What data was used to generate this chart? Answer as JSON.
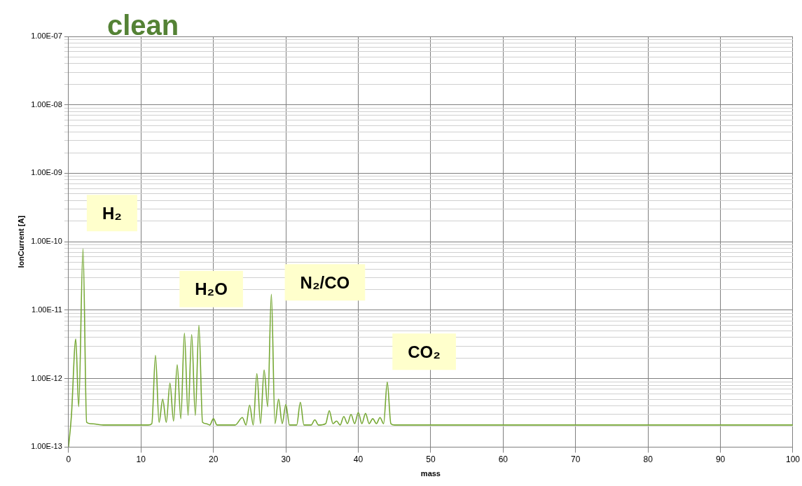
{
  "chart_data": {
    "type": "line",
    "title": "clean",
    "xlabel": "mass",
    "ylabel": "IonCurrent [A]",
    "log": "y",
    "grid": true,
    "legend": false,
    "marker": "none",
    "line_style": "solid",
    "xlim": [
      0,
      100
    ],
    "xticks": [
      0,
      10,
      20,
      30,
      40,
      50,
      60,
      70,
      80,
      90,
      100
    ],
    "ylim": [
      1e-13,
      1e-07
    ],
    "yticks": [
      {
        "value": 1e-13,
        "label": "1.00E-13"
      },
      {
        "value": 2e-13,
        "label": null
      },
      {
        "value": 3e-13,
        "label": null
      },
      {
        "value": 4e-13,
        "label": null
      },
      {
        "value": 5e-13,
        "label": null
      },
      {
        "value": 6e-13,
        "label": null
      },
      {
        "value": 7e-13,
        "label": null
      },
      {
        "value": 8e-13,
        "label": null
      },
      {
        "value": 9e-13,
        "label": null
      },
      {
        "value": 1e-12,
        "label": "1.00E-12"
      },
      {
        "value": 2e-12,
        "label": null
      },
      {
        "value": 3e-12,
        "label": null
      },
      {
        "value": 4e-12,
        "label": null
      },
      {
        "value": 5e-12,
        "label": null
      },
      {
        "value": 6e-12,
        "label": null
      },
      {
        "value": 7e-12,
        "label": null
      },
      {
        "value": 8e-12,
        "label": null
      },
      {
        "value": 9e-12,
        "label": null
      },
      {
        "value": 1e-11,
        "label": "1.00E-11"
      },
      {
        "value": 2e-11,
        "label": null
      },
      {
        "value": 3e-11,
        "label": null
      },
      {
        "value": 4e-11,
        "label": null
      },
      {
        "value": 5e-11,
        "label": null
      },
      {
        "value": 6e-11,
        "label": null
      },
      {
        "value": 7e-11,
        "label": null
      },
      {
        "value": 8e-11,
        "label": null
      },
      {
        "value": 9e-11,
        "label": null
      },
      {
        "value": 1e-10,
        "label": "1.00E-10"
      },
      {
        "value": 2e-10,
        "label": null
      },
      {
        "value": 3e-10,
        "label": null
      },
      {
        "value": 4e-10,
        "label": null
      },
      {
        "value": 5e-10,
        "label": null
      },
      {
        "value": 6e-10,
        "label": null
      },
      {
        "value": 7e-10,
        "label": null
      },
      {
        "value": 8e-10,
        "label": null
      },
      {
        "value": 9e-10,
        "label": null
      },
      {
        "value": 1e-09,
        "label": "1.00E-09"
      },
      {
        "value": 2e-09,
        "label": null
      },
      {
        "value": 3e-09,
        "label": null
      },
      {
        "value": 4e-09,
        "label": null
      },
      {
        "value": 5e-09,
        "label": null
      },
      {
        "value": 6e-09,
        "label": null
      },
      {
        "value": 7e-09,
        "label": null
      },
      {
        "value": 8e-09,
        "label": null
      },
      {
        "value": 9e-09,
        "label": null
      },
      {
        "value": 1e-08,
        "label": "1.00E-08"
      },
      {
        "value": 2e-08,
        "label": null
      },
      {
        "value": 3e-08,
        "label": null
      },
      {
        "value": 4e-08,
        "label": null
      },
      {
        "value": 5e-08,
        "label": null
      },
      {
        "value": 6e-08,
        "label": null
      },
      {
        "value": 7e-08,
        "label": null
      },
      {
        "value": 8e-08,
        "label": null
      },
      {
        "value": 9e-08,
        "label": null
      },
      {
        "value": 1e-07,
        "label": "1.00E-07"
      }
    ],
    "annotations": [
      "H₂",
      "H₂O",
      "N₂/CO",
      "CO₂"
    ],
    "series": [
      {
        "color": "#76a834",
        "x": [
          0,
          0.4,
          1,
          1.4,
          2,
          2.5,
          3,
          5,
          8,
          11,
          11.5,
          12,
          12.5,
          13,
          13.5,
          14,
          14.5,
          15,
          15.5,
          16,
          16.5,
          17,
          17.5,
          18,
          18.5,
          19,
          19.5,
          20,
          20.5,
          23,
          24,
          24.5,
          25,
          25.5,
          26,
          26.5,
          27,
          27.5,
          28,
          28.5,
          29,
          29.5,
          30,
          30.5,
          31.5,
          32,
          32.5,
          33.5,
          34,
          34.5,
          35.5,
          36,
          36.5,
          37,
          37.5,
          38,
          38.5,
          39,
          39.5,
          40,
          40.5,
          41,
          41.5,
          42,
          42.5,
          43,
          43.5,
          44,
          44.5,
          45,
          50,
          55,
          60,
          70,
          80,
          90,
          100
        ],
        "values": [
          1e-13,
          2.9e-13,
          3.8e-12,
          3.9e-13,
          7.9e-11,
          2.3e-13,
          2.2e-13,
          2.1e-13,
          2.1e-13,
          2.1e-13,
          2.2e-13,
          2.2e-12,
          2.3e-13,
          5e-13,
          2.3e-13,
          8.6e-13,
          2.4e-13,
          1.6e-12,
          2.6e-13,
          4.6e-12,
          2.9e-13,
          4.4e-12,
          2.9e-13,
          6e-12,
          2.3e-13,
          2.2e-13,
          2.1e-13,
          2.6e-13,
          2.1e-13,
          2.1e-13,
          2.7e-13,
          2.1e-13,
          4.1e-13,
          2.1e-13,
          1.18e-12,
          2.2e-13,
          1.34e-12,
          3.9e-13,
          1.7e-11,
          2.2e-13,
          5e-13,
          2.2e-13,
          4.2e-13,
          2.1e-13,
          2.1e-13,
          4.5e-13,
          2.1e-13,
          2.1e-13,
          2.5e-13,
          2.1e-13,
          2.2e-13,
          3.4e-13,
          2.2e-13,
          2.4e-13,
          2.1e-13,
          2.8e-13,
          2.2e-13,
          3e-13,
          2.2e-13,
          3.2e-13,
          2.2e-13,
          3.1e-13,
          2.2e-13,
          2.6e-13,
          2.2e-13,
          2.7e-13,
          2.2e-13,
          8.9e-13,
          2.2e-13,
          2.1e-13,
          2.1e-13,
          2.1e-13,
          2.1e-13,
          2.1e-13,
          2.1e-13,
          2.1e-13,
          2.1e-13
        ]
      }
    ]
  }
}
